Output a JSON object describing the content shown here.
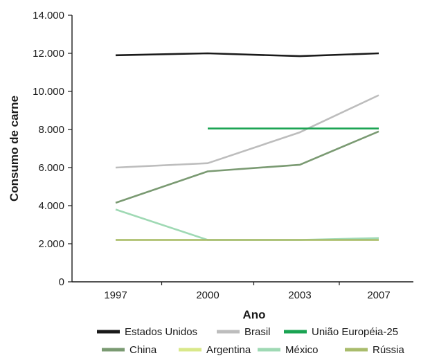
{
  "chart_data": {
    "type": "line",
    "title": "",
    "xlabel": "Ano",
    "ylabel": "Consumo de carne",
    "categories": [
      "1997",
      "2000",
      "2003",
      "2007"
    ],
    "ylim": [
      0,
      14000
    ],
    "yticks": [
      "0",
      "2.000",
      "4.000",
      "6.000",
      "8.000",
      "10.000",
      "12.000",
      "14.000"
    ],
    "grid": false,
    "legend_position": "bottom",
    "series": [
      {
        "name": "Estados Unidos",
        "color": "#1a1a1a",
        "values": [
          11900,
          12000,
          11850,
          12000
        ]
      },
      {
        "name": "Brasil",
        "color": "#bdbdbd",
        "values": [
          6000,
          6230,
          7850,
          9800
        ]
      },
      {
        "name": "União Européia-25",
        "color": "#1aa352",
        "values": [
          null,
          8050,
          8050,
          8050
        ]
      },
      {
        "name": "China",
        "color": "#7a9a72",
        "values": [
          4150,
          5800,
          6150,
          7900
        ]
      },
      {
        "name": "Argentina",
        "color": "#d9e88a",
        "values": [
          2200,
          2200,
          2200,
          2200
        ]
      },
      {
        "name": "México",
        "color": "#9fd9b4",
        "values": [
          3800,
          2200,
          2200,
          2300
        ]
      },
      {
        "name": "Rússia",
        "color": "#a9bc6c",
        "values": [
          2200,
          2200,
          2200,
          2200
        ]
      }
    ]
  }
}
